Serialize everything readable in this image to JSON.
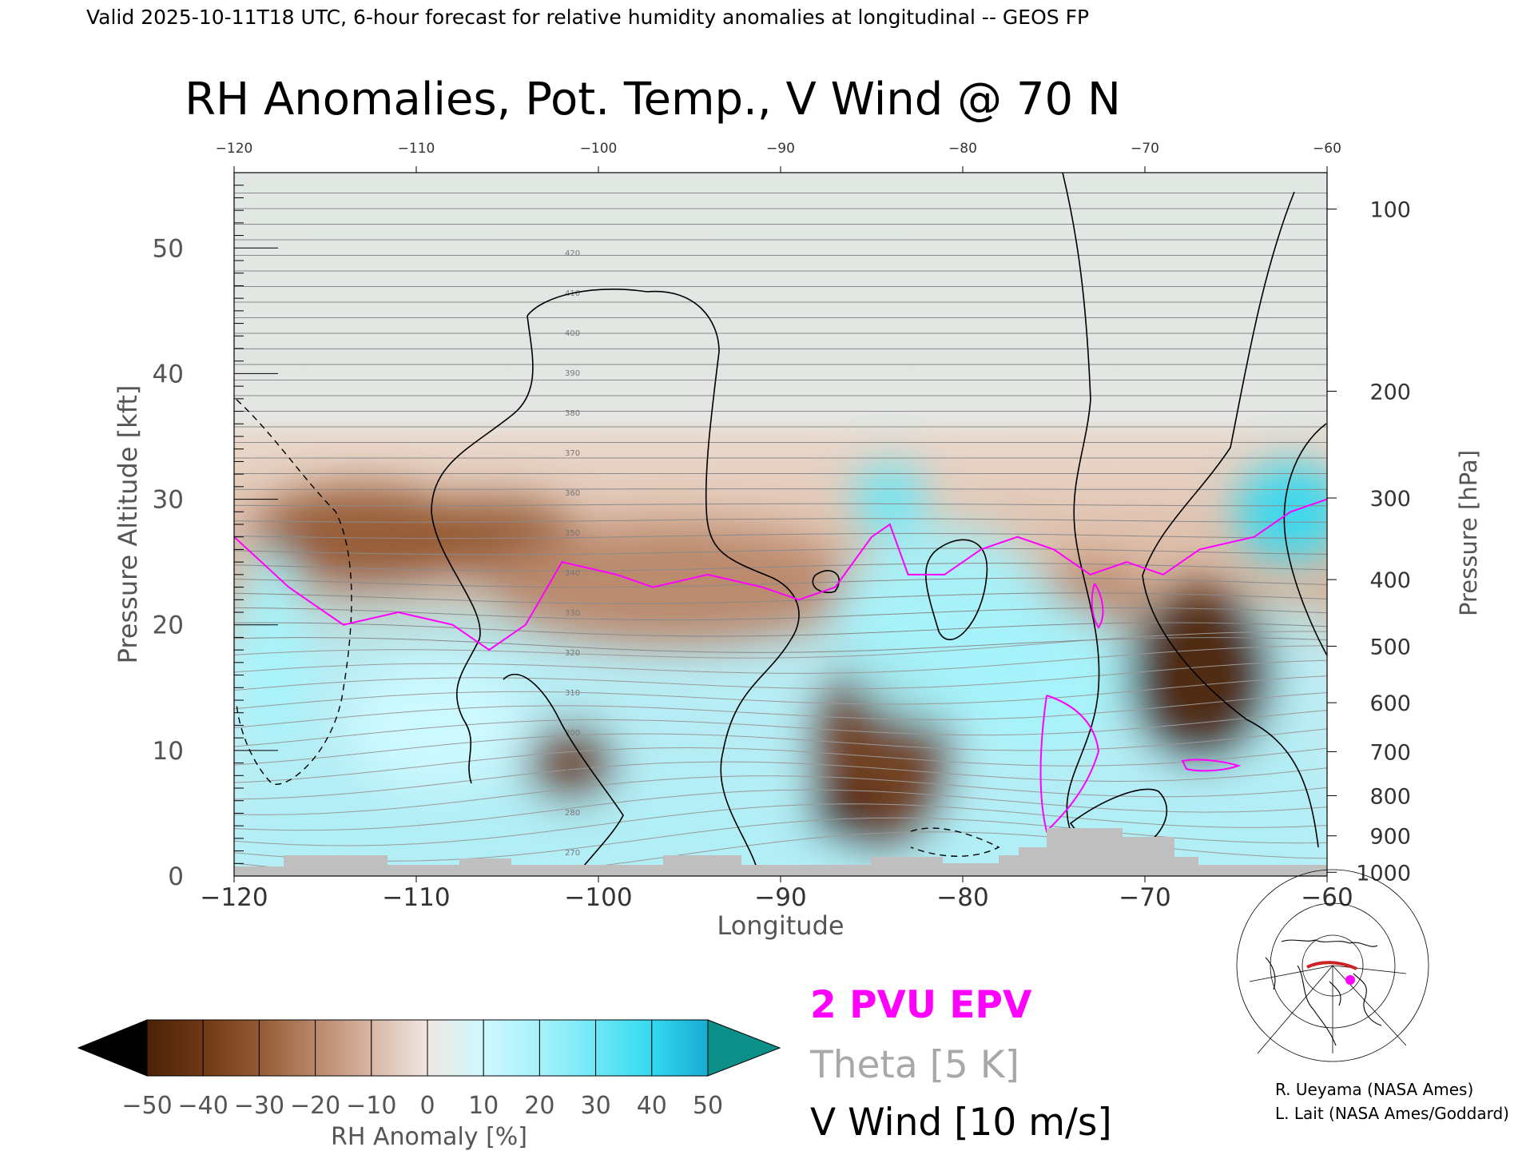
{
  "header": {
    "valid_line": "Valid 2025-10-11T18 UTC, 6-hour forecast for relative humidity anomalies at longitudinal -- GEOS FP",
    "title": "RH Anomalies, Pot. Temp., V Wind @ 70 N"
  },
  "chart_data": {
    "type": "heatmap",
    "title": "RH Anomalies, Pot. Temp., V Wind @ 70 N",
    "xlabel": "Longitude",
    "ylabel_left": "Pressure Altitude [kft]",
    "ylabel_right": "Pressure [hPa]",
    "xlim": [
      -120,
      -60
    ],
    "ylim_kft": [
      0,
      56
    ],
    "x_ticks": [
      -120,
      -110,
      -100,
      -90,
      -80,
      -70,
      -60
    ],
    "x_tick_labels": [
      "−120",
      "−110",
      "−100",
      "−90",
      "−80",
      "−70",
      "−60"
    ],
    "y_ticks_kft": [
      0,
      10,
      20,
      30,
      40,
      50
    ],
    "pressure_ticks_hpa": [
      {
        "label": "100",
        "kft": 53.1
      },
      {
        "label": "200",
        "kft": 38.6
      },
      {
        "label": "300",
        "kft": 30.1
      },
      {
        "label": "400",
        "kft": 23.6
      },
      {
        "label": "500",
        "kft": 18.3
      },
      {
        "label": "600",
        "kft": 13.8
      },
      {
        "label": "700",
        "kft": 9.9
      },
      {
        "label": "800",
        "kft": 6.4
      },
      {
        "label": "900",
        "kft": 3.2
      },
      {
        "label": "1000",
        "kft": 0.3
      }
    ],
    "rh_anomaly_regions": [
      {
        "lon": -113,
        "kft": 27,
        "rlon": 6,
        "rkft": 4,
        "value": -25
      },
      {
        "lon": -106,
        "kft": 27,
        "rlon": 5,
        "rkft": 3,
        "value": -30
      },
      {
        "lon": -96,
        "kft": 23,
        "rlon": 10,
        "rkft": 5,
        "value": -18
      },
      {
        "lon": -101.5,
        "kft": 9,
        "rlon": 2.5,
        "rkft": 3,
        "value": -35
      },
      {
        "lon": -84.5,
        "kft": 10,
        "rlon": 4,
        "rkft": 8,
        "value": -40
      },
      {
        "lon": -86.5,
        "kft": 5,
        "rlon": 2,
        "rkft": 2,
        "value": -45
      },
      {
        "lon": -67,
        "kft": 16,
        "rlon": 4,
        "rkft": 7,
        "value": -45
      },
      {
        "lon": -73,
        "kft": 22,
        "rlon": 3,
        "rkft": 3,
        "value": -20
      },
      {
        "lon": -81,
        "kft": 20,
        "rlon": 6,
        "rkft": 8,
        "value": 20
      },
      {
        "lon": -76,
        "kft": 16,
        "rlon": 5,
        "rkft": 6,
        "value": 25
      },
      {
        "lon": -62,
        "kft": 29,
        "rlon": 3,
        "rkft": 4,
        "value": 45
      },
      {
        "lon": -118,
        "kft": 18,
        "rlon": 2,
        "rkft": 8,
        "value": 20
      },
      {
        "lon": -109,
        "kft": 12,
        "rlon": 5,
        "rkft": 5,
        "value": 15
      },
      {
        "lon": -84,
        "kft": 30,
        "rlon": 2,
        "rkft": 3,
        "value": 35
      }
    ],
    "theta_contour_labels": [
      "270",
      "280",
      "290",
      "300",
      "310",
      "320",
      "330",
      "340",
      "350",
      "360",
      "370",
      "380",
      "390",
      "400",
      "410",
      "420"
    ],
    "series": [
      {
        "name": "2 PVU EPV",
        "color": "#ff00ff",
        "lon": [
          -120,
          -117,
          -114,
          -111,
          -108,
          -106,
          -104,
          -102,
          -99,
          -97,
          -94,
          -91,
          -89,
          -87,
          -85,
          -84,
          -83,
          -81,
          -79,
          -77,
          -75,
          -73,
          -71,
          -69,
          -67,
          -64,
          -62,
          -60
        ],
        "kft": [
          27,
          23,
          20,
          21,
          20,
          18,
          20,
          25,
          24,
          23,
          24,
          23,
          22,
          23,
          27,
          28,
          24,
          24,
          26,
          27,
          26,
          24,
          25,
          24,
          26,
          27,
          29,
          30
        ]
      },
      {
        "name": "Theta [5 K]",
        "color": "#999999"
      },
      {
        "name": "V Wind [10 m/s]",
        "color": "#000000"
      }
    ],
    "colorbar": {
      "label": "RH Anomaly [%]",
      "ticks": [
        "−50",
        "−40",
        "−30",
        "−20",
        "−10",
        "0",
        "10",
        "20",
        "30",
        "40",
        "50"
      ],
      "colors": [
        "#000000",
        "#4a2208",
        "#6f3814",
        "#935a33",
        "#b9886a",
        "#d8b6a4",
        "#f0e7e2",
        "#cdf9ff",
        "#a7f2fb",
        "#6ee8f6",
        "#34d9f0",
        "#17acd3",
        "#067e9c",
        "#0c8f88"
      ]
    },
    "grid": false
  },
  "legend": {
    "epv": "2 PVU EPV",
    "theta": "Theta [5 K]",
    "vwind": "V Wind [10 m/s]"
  },
  "credits": {
    "line1": "R. Ueyama (NASA Ames)",
    "line2": "L. Lait (NASA Ames/Goddard)"
  },
  "inset_map": {
    "marker_color": "#ff00ff",
    "section_color": "#cc2222"
  }
}
